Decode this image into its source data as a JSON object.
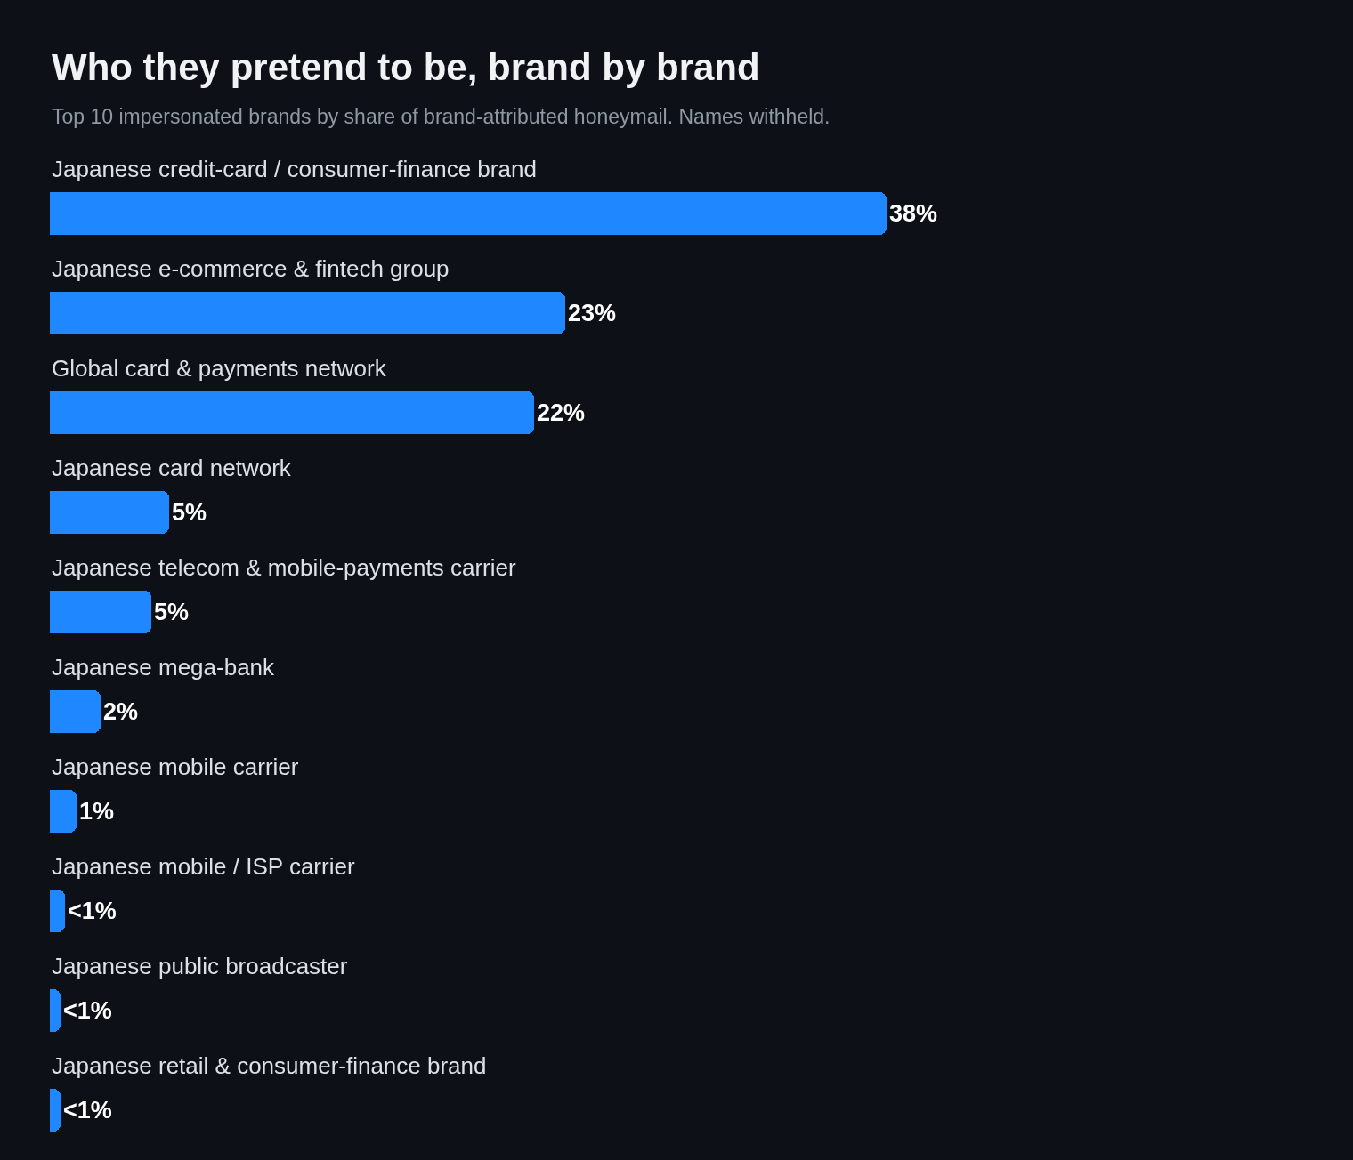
{
  "chart_data": {
    "type": "bar",
    "orientation": "horizontal",
    "title": "Who they pretend to be, brand by brand",
    "subtitle": "Top 10 impersonated brands by share of brand-attributed honeymail. Names withheld.",
    "categories": [
      "Japanese credit-card / consumer-finance brand",
      "Japanese e-commerce & fintech group",
      "Global card & payments network",
      "Japanese card network",
      "Japanese telecom & mobile-payments carrier",
      "Japanese mega-bank",
      "Japanese mobile carrier",
      "Japanese mobile / ISP carrier",
      "Japanese public broadcaster",
      "Japanese retail & consumer-finance brand"
    ],
    "values": [
      38,
      23.4,
      22,
      5.4,
      4.6,
      2.3,
      1.2,
      0.7,
      0.5,
      0.5
    ],
    "value_labels": [
      "38%",
      "23%",
      "22%",
      "5%",
      "5%",
      "2%",
      "1%",
      "<1%",
      "<1%",
      "<1%"
    ],
    "color": "#1f87ff"
  }
}
